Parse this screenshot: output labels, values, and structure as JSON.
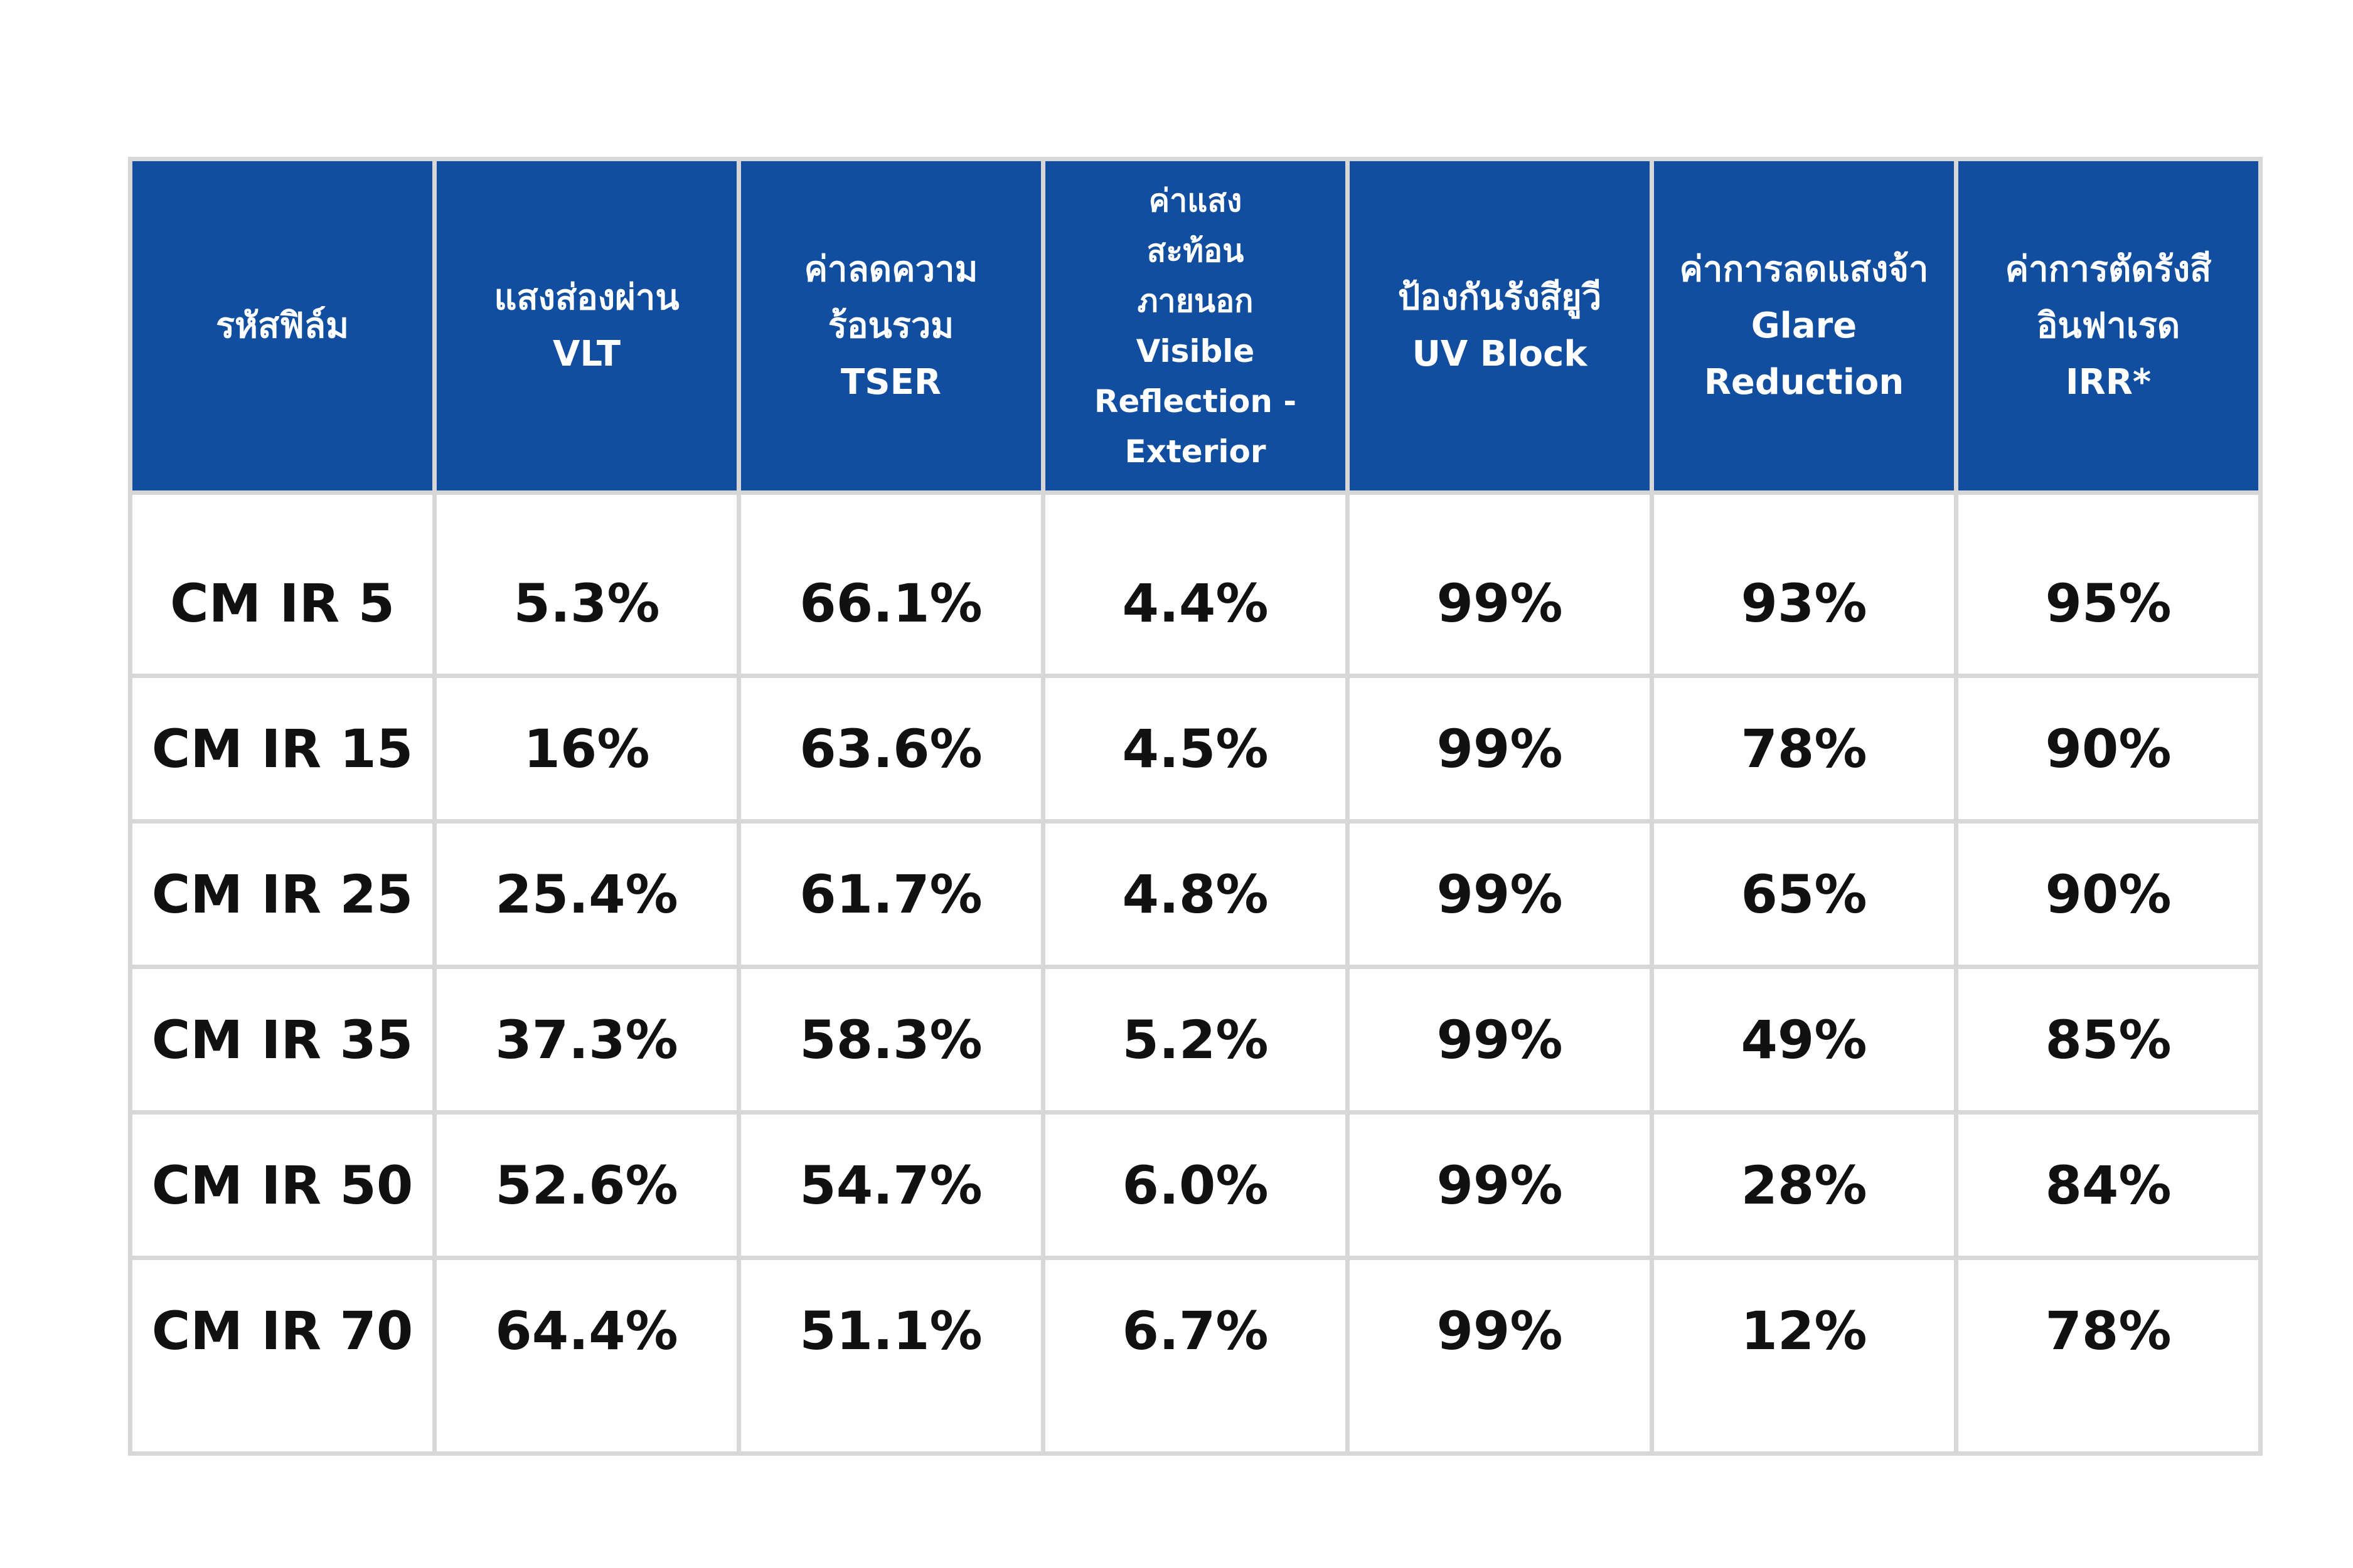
{
  "chart_data": {
    "type": "table",
    "header_color": "#114e9f",
    "grid_color": "#d7d7d7",
    "columns": [
      "รหัสฟิล์ม",
      "แสงส่องผ่าน\nVLT",
      "ค่าลดความ\nร้อนรวม\nTSER",
      "ค่าแสง\nสะท้อน\nภายนอก\nVisible\nReflection -\nExterior",
      "ป้องกันรังสียูวี\nUV Block",
      "ค่าการลดแสงจ้า\nGlare\nReduction",
      "ค่าการตัดรังสี\nอินฟาเรด\nIRR*"
    ],
    "rows": [
      [
        "CM IR 5",
        "5.3%",
        "66.1%",
        "4.4%",
        "99%",
        "93%",
        "95%"
      ],
      [
        "CM IR 15",
        "16%",
        "63.6%",
        "4.5%",
        "99%",
        "78%",
        "90%"
      ],
      [
        "CM IR 25",
        "25.4%",
        "61.7%",
        "4.8%",
        "99%",
        "65%",
        "90%"
      ],
      [
        "CM IR 35",
        "37.3%",
        "58.3%",
        "5.2%",
        "99%",
        "49%",
        "85%"
      ],
      [
        "CM IR 50",
        "52.6%",
        "54.7%",
        "6.0%",
        "99%",
        "28%",
        "84%"
      ],
      [
        "CM IR 70",
        "64.4%",
        "51.1%",
        "6.7%",
        "99%",
        "12%",
        "78%"
      ]
    ]
  }
}
